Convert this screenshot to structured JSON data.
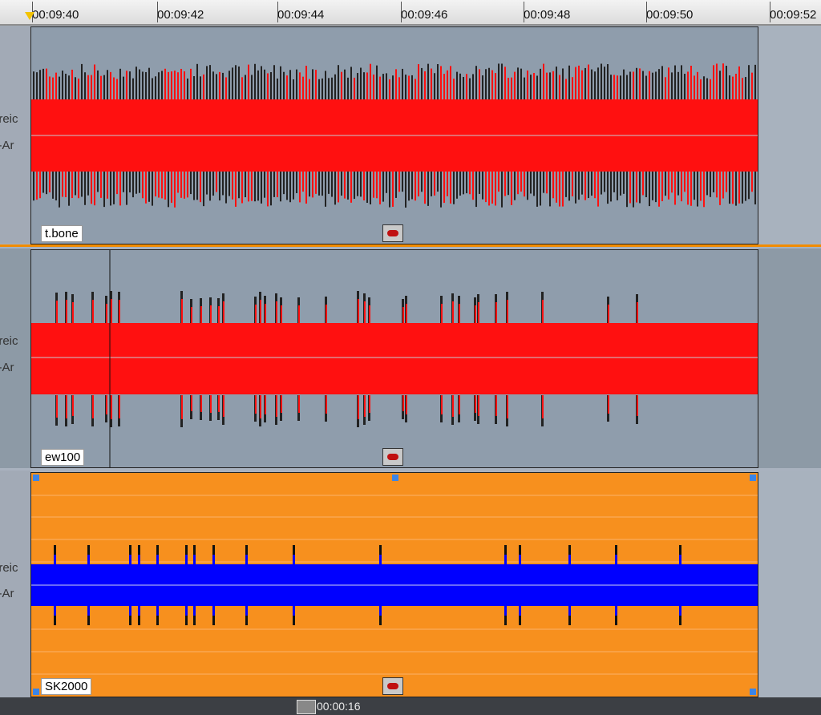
{
  "timeline": {
    "ticks": [
      "00:09:40",
      "00:09:42",
      "00:09:44",
      "00:09:46",
      "00:09:48",
      "00:09:50",
      "00:09:52"
    ]
  },
  "tracks": [
    {
      "name": "t.bone",
      "color": "#ff1010",
      "bg": "#8f9dac",
      "side_labels": [
        "ereic",
        "s-Ar"
      ]
    },
    {
      "name": "ew100",
      "color": "#ff1010",
      "bg": "#8f9dac",
      "side_labels": [
        "ereic",
        "s-Ar"
      ]
    },
    {
      "name": "SK2000",
      "color": "#0000ff",
      "bg": "#f7901e",
      "side_labels": [
        "ereic",
        "s-Ar"
      ]
    }
  ],
  "bottom": {
    "duration": "00:00:16"
  },
  "colors": {
    "separator": "#f28c00",
    "waveform_red": "#ff1010",
    "waveform_blue": "#0000ff",
    "clip_orange": "#f7901e"
  },
  "icons": [
    "playhead-marker-icon",
    "clip-key-icon",
    "scroll-grip-icon"
  ]
}
